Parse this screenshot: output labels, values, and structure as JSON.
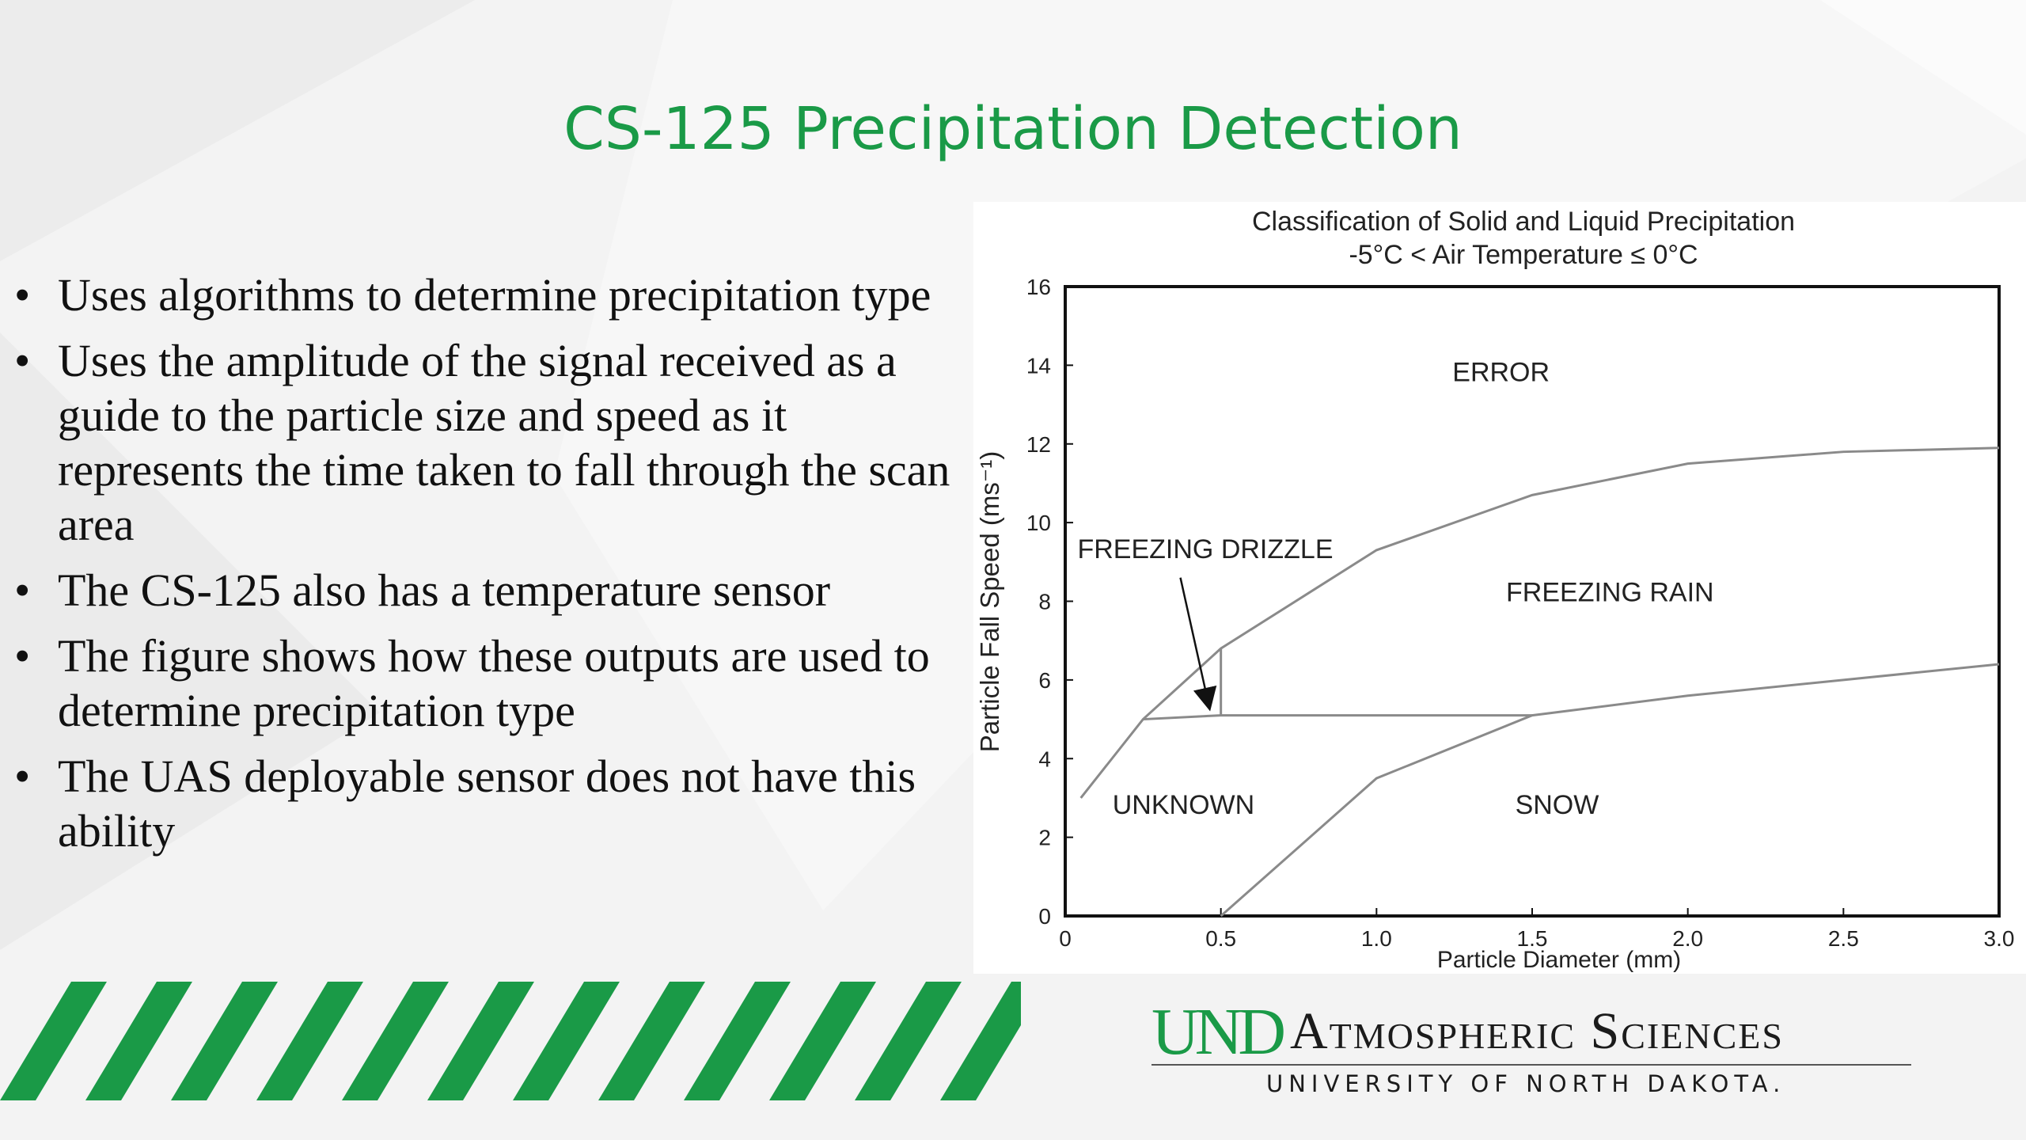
{
  "slide": {
    "title": "CS-125 Precipitation Detection",
    "accent_color": "#1a9a47",
    "bullets": [
      "Uses algorithms to determine precipitation type",
      "Uses the amplitude of the signal received as a guide to the particle size and speed as it represents the time taken to fall through the scan area",
      "The CS-125 also has a temperature sensor",
      "The figure shows how these outputs are used to determine precipitation type",
      "The UAS deployable sensor does not have this ability"
    ],
    "bullet_symbol": "•"
  },
  "chart_data": {
    "type": "line",
    "title": "Classification of Solid and Liquid Precipitation",
    "subtitle": "-5°C < Air Temperature ≤ 0°C",
    "xlabel": "Particle Diameter  (mm)",
    "ylabel": "Particle Fall Speed  (ms⁻¹)",
    "xlim": [
      0,
      3.0
    ],
    "ylim": [
      0,
      16
    ],
    "x_ticks": [
      0,
      0.5,
      1.0,
      1.5,
      2.0,
      2.5,
      3.0
    ],
    "x_tick_labels": [
      "0",
      "0.5",
      "1.0",
      "1.5",
      "2.0",
      "2.5",
      "3.0"
    ],
    "y_ticks": [
      0,
      2,
      4,
      6,
      8,
      10,
      12,
      14,
      16
    ],
    "y_tick_labels": [
      "0",
      "2",
      "4",
      "6",
      "8",
      "10",
      "12",
      "14",
      "16"
    ],
    "grid": false,
    "series": [
      {
        "x": [
          0.05,
          0.25,
          0.5,
          1.0,
          1.5,
          2.0,
          2.5,
          3.0
        ],
        "y": [
          3.0,
          5.0,
          6.8,
          9.3,
          10.7,
          11.5,
          11.8,
          11.9
        ]
      },
      {
        "x": [
          0.5,
          1.0,
          1.5,
          2.0,
          2.5,
          3.0
        ],
        "y": [
          0.0,
          3.5,
          5.1,
          5.6,
          6.0,
          6.4
        ]
      },
      {
        "x": [
          0.25,
          0.5,
          1.5
        ],
        "y": [
          5.0,
          5.1,
          5.1
        ]
      },
      {
        "x": [
          0.5,
          0.5
        ],
        "y": [
          5.1,
          6.8
        ]
      }
    ],
    "region_labels": [
      {
        "text": "ERROR",
        "x": 1.4,
        "y": 13.6
      },
      {
        "text": "FREEZING DRIZZLE",
        "x": 0.45,
        "y": 9.1
      },
      {
        "text": "FREEZING RAIN",
        "x": 1.75,
        "y": 8.0
      },
      {
        "text": "UNKNOWN",
        "x": 0.38,
        "y": 2.6
      },
      {
        "text": "SNOW",
        "x": 1.58,
        "y": 2.6
      }
    ],
    "arrow": {
      "from": [
        0.37,
        8.6
      ],
      "to": [
        0.46,
        5.4
      ]
    }
  },
  "logo": {
    "mark": "UND",
    "department": "Atmospheric Sciences",
    "university": "UNIVERSITY OF NORTH DAKOTA."
  }
}
